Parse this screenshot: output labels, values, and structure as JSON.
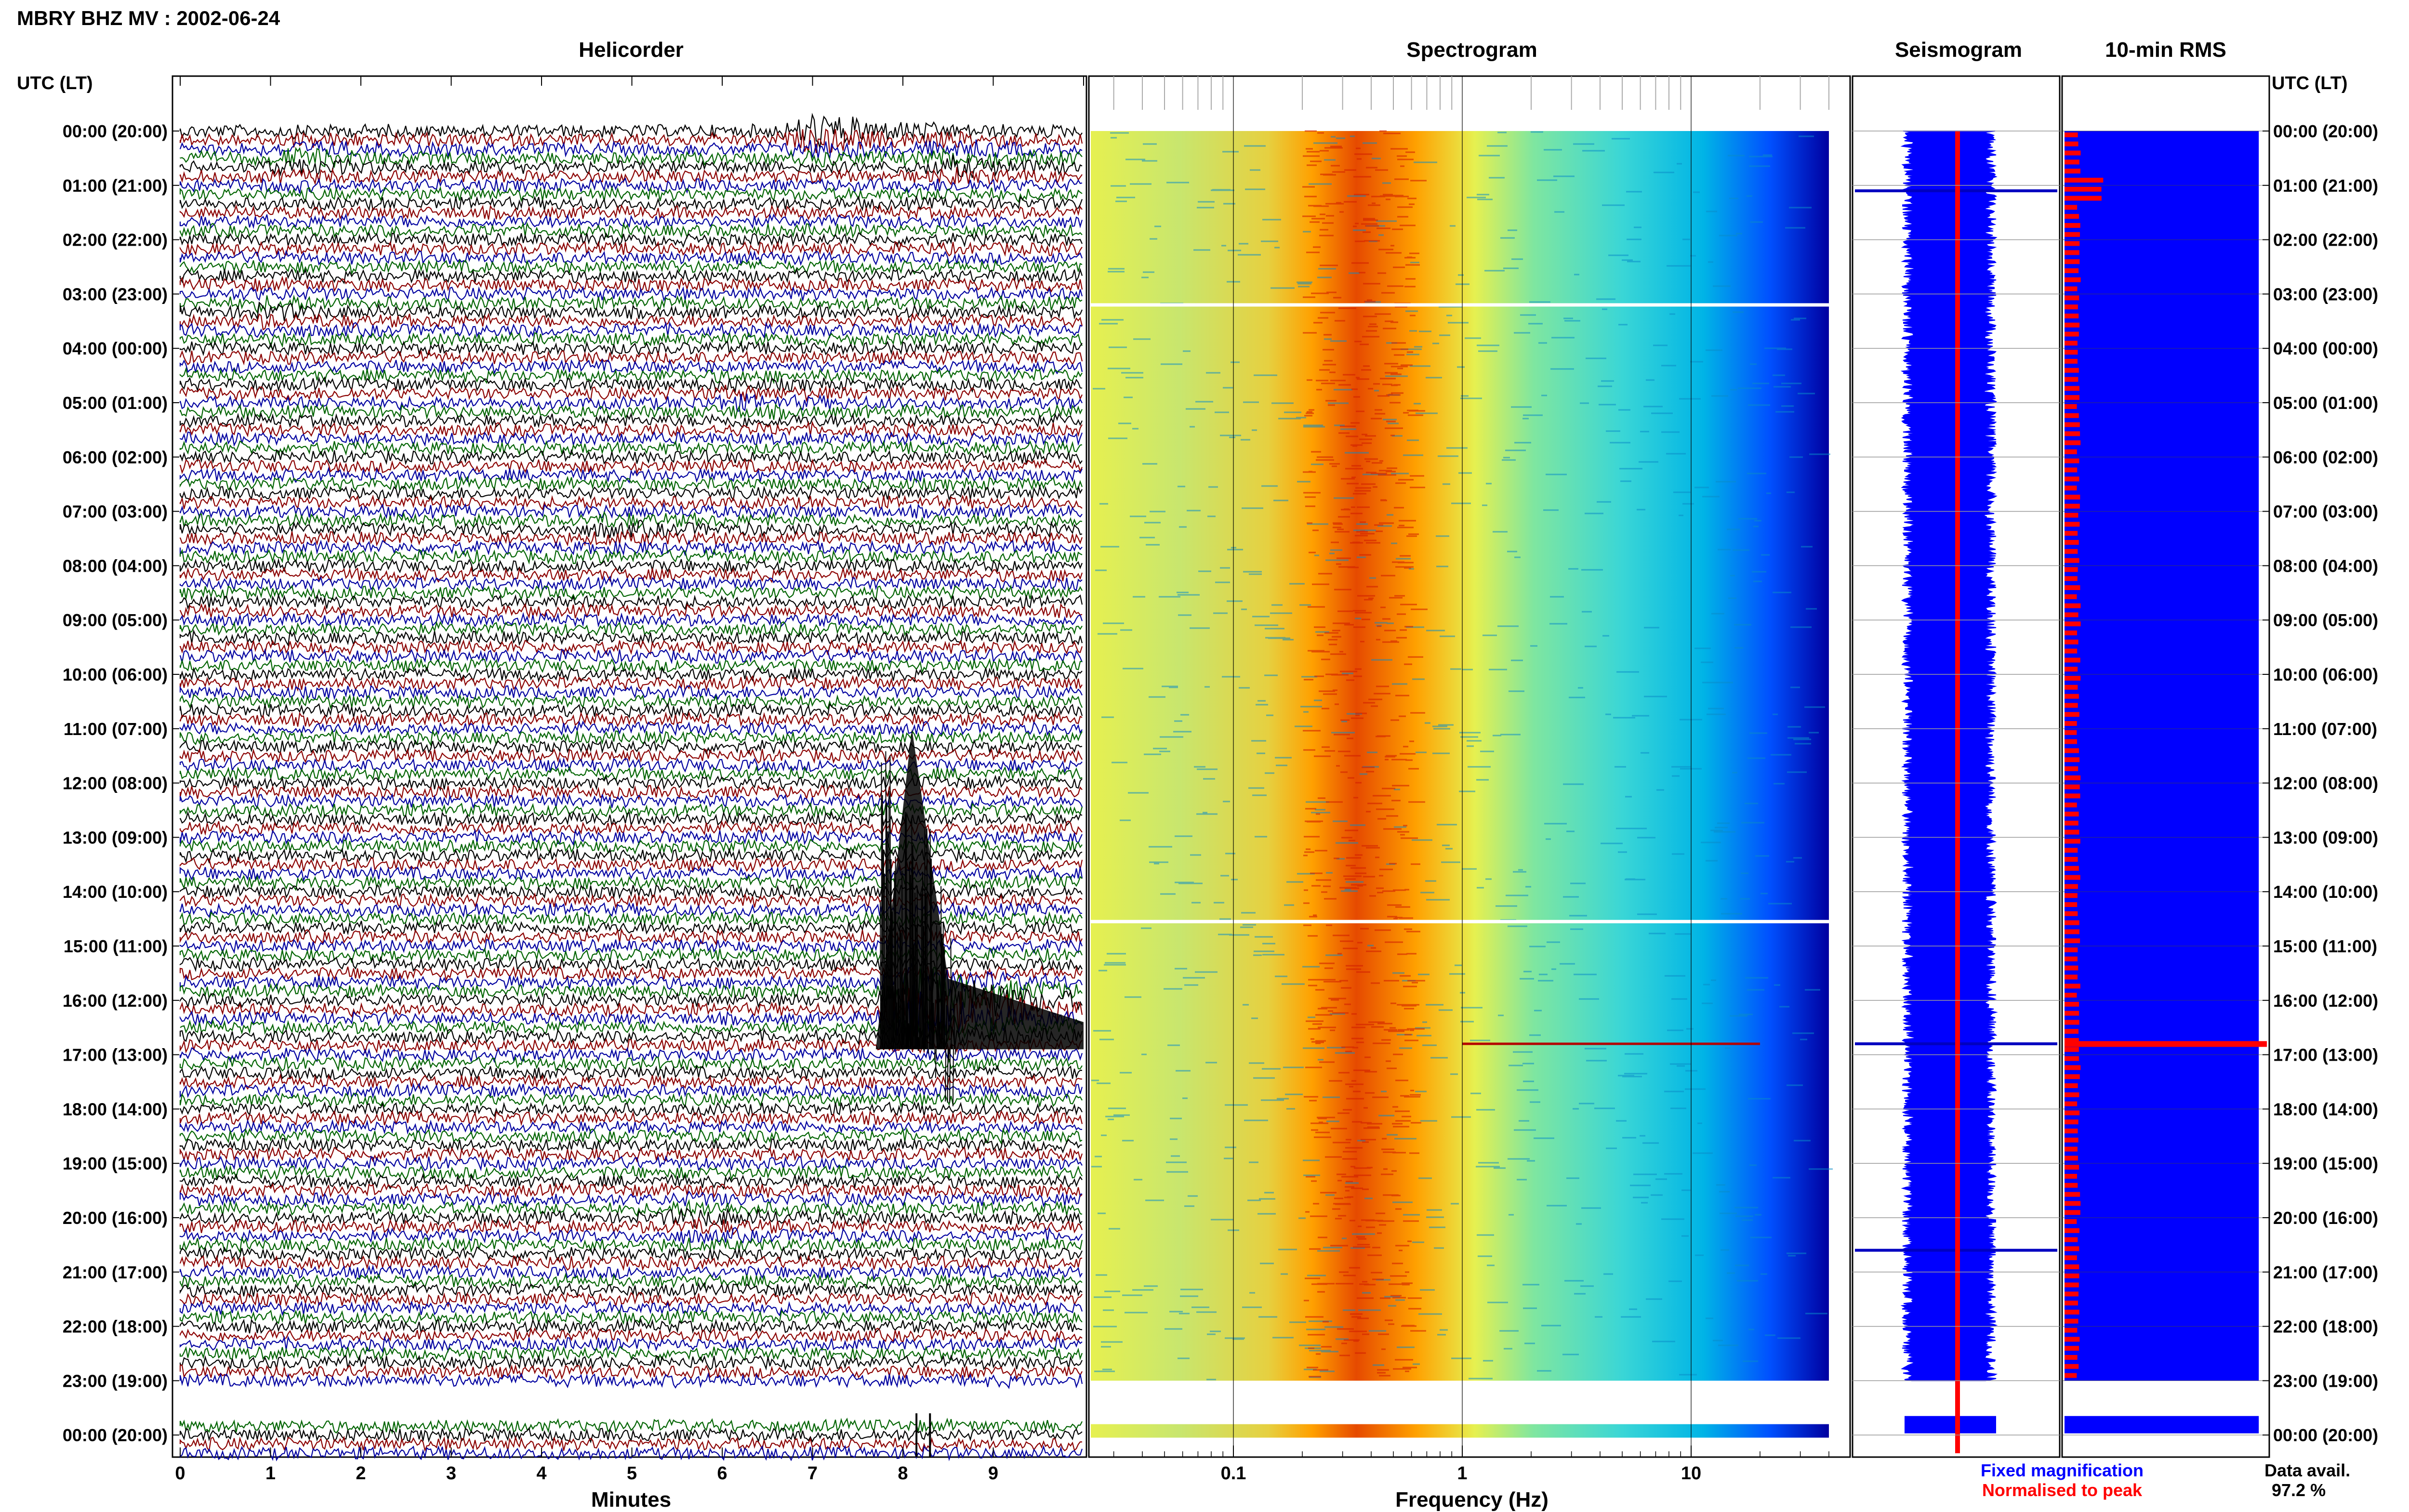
{
  "header": {
    "title": "MBRY BHZ MV : 2002-06-24",
    "utc_label": "UTC (LT)"
  },
  "panels": {
    "helicorder": "Helicorder",
    "spectrogram": "Spectrogram",
    "seismogram": "Seismogram",
    "rms": "10-min RMS"
  },
  "footer": {
    "fixed_label": "Fixed magnification",
    "normalised_label": "Normalised to peak",
    "data_avail_label": "Data avail.",
    "data_avail_value": "97.2 %"
  },
  "colors": {
    "trace_cycle": [
      "#000000",
      "#8b0000",
      "#0000a0",
      "#006400"
    ],
    "fixed_magnification": "#0000ff",
    "normalised_to_peak": "#ff0000",
    "spectrogram_colormap": [
      "#0000a0",
      "#0050ff",
      "#00c8e6",
      "#7fe6a0",
      "#e6f050",
      "#ffa000",
      "#e62000"
    ]
  },
  "chart_data": [
    {
      "type": "line",
      "title": "Helicorder",
      "xlabel": "Minutes",
      "xlim": [
        0,
        10
      ],
      "x_ticks": [
        "0",
        "1",
        "2",
        "3",
        "4",
        "5",
        "6",
        "7",
        "8",
        "9"
      ],
      "y_ticks": [
        "00:00 (20:00)",
        "01:00 (21:00)",
        "02:00 (22:00)",
        "03:00 (23:00)",
        "04:00 (00:00)",
        "05:00 (01:00)",
        "06:00 (02:00)",
        "07:00 (03:00)",
        "08:00 (04:00)",
        "09:00 (05:00)",
        "10:00 (06:00)",
        "11:00 (07:00)",
        "12:00 (08:00)",
        "13:00 (09:00)",
        "14:00 (10:00)",
        "15:00 (11:00)",
        "16:00 (12:00)",
        "17:00 (13:00)",
        "18:00 (14:00)",
        "19:00 (15:00)",
        "20:00 (16:00)",
        "21:00 (17:00)",
        "22:00 (18:00)",
        "23:00 (19:00)",
        "00:00 (20:00)"
      ],
      "rows_per_hour": 6,
      "events": [
        {
          "utc_hour": 0.0,
          "minute": 7.0,
          "amplitude": 3.0
        },
        {
          "utc_hour": 0.5,
          "minute": 1.2,
          "amplitude": 1.2
        },
        {
          "utc_hour": 0.6,
          "minute": 8.5,
          "amplitude": 1.5
        },
        {
          "utc_hour": 3.3,
          "minute": 0.9,
          "amplitude": 1.0
        },
        {
          "utc_hour": 5.0,
          "minute": 6.0,
          "amplitude": 0.8
        },
        {
          "utc_hour": 7.3,
          "minute": 4.7,
          "amplitude": 0.9
        },
        {
          "utc_hour": 16.1,
          "minute": 8.1,
          "amplitude": 12.0
        },
        {
          "utc_hour": 20.0,
          "minute": 5.6,
          "amplitude": 1.3
        }
      ],
      "gap_utc_hours": [
        23.0,
        23.8
      ]
    },
    {
      "type": "heatmap",
      "title": "Spectrogram",
      "xlabel": "Frequency (Hz)",
      "x_scale": "log",
      "x_ticks": [
        "0.1",
        "1",
        "10"
      ],
      "xlim": [
        0.02,
        50
      ],
      "peak_band_hz": [
        0.2,
        0.6
      ],
      "gap_utc_hours": [
        23.0,
        23.8
      ]
    },
    {
      "type": "line",
      "title": "Seismogram",
      "spikes_utc_hour": [
        1.1,
        16.8,
        20.6
      ]
    },
    {
      "type": "bar",
      "title": "10-min RMS",
      "fixed_magnification_level": 0.96,
      "normalised_peak_utc_hour": 16.75,
      "gap_utc_hours": [
        23.0,
        23.8
      ]
    }
  ]
}
